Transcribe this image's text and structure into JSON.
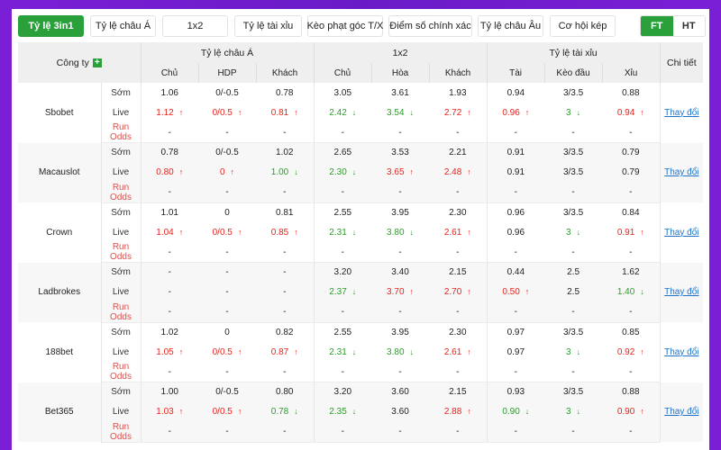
{
  "tabs": [
    {
      "label": "Tỷ lệ 3in1",
      "active": true
    },
    {
      "label": "Tỷ lệ châu Á"
    },
    {
      "label": "1x2"
    },
    {
      "label": "Tỷ lệ tài xỉu"
    },
    {
      "label": "Kèo phạt góc T/X"
    },
    {
      "label": "Điểm số chính xác"
    },
    {
      "label": "Tỷ lệ châu Âu"
    },
    {
      "label": "Cơ hội kép"
    }
  ],
  "toggle": {
    "ft": "FT",
    "ht": "HT"
  },
  "header": {
    "company": "Công ty",
    "asian": "Tỷ lệ châu Á",
    "x12": "1x2",
    "ou": "Tỷ lệ tài xỉu",
    "detail": "Chi tiết",
    "sub": [
      "Chủ",
      "HDP",
      "Khách",
      "Chủ",
      "Hòa",
      "Khách",
      "Tài",
      "Kèo đầu",
      "Xỉu"
    ]
  },
  "labels": {
    "early": "Sớm",
    "live": "Live",
    "run": "Run Odds",
    "detail_link": "Thay đổi",
    "dash": "-"
  },
  "colors": {
    "green": "#29a03a",
    "up": "#e8231e",
    "down": "#2a9d2a",
    "link": "#1e73c8"
  },
  "companies": [
    {
      "name": "Sbobet",
      "early": [
        "1.06",
        "0/-0.5",
        "0.78",
        "3.05",
        "3.61",
        "1.93",
        "0.94",
        "3/3.5",
        "0.88"
      ],
      "live": [
        [
          "1.12",
          "up"
        ],
        [
          "0/0.5",
          "up"
        ],
        [
          "0.81",
          "up"
        ],
        [
          "2.42",
          "down"
        ],
        [
          "3.54",
          "down"
        ],
        [
          "2.72",
          "up"
        ],
        [
          "0.96",
          "up"
        ],
        [
          "3",
          "down"
        ],
        [
          "0.94",
          "up"
        ]
      ]
    },
    {
      "name": "Macauslot",
      "early": [
        "0.78",
        "0/-0.5",
        "1.02",
        "2.65",
        "3.53",
        "2.21",
        "0.91",
        "3/3.5",
        "0.79"
      ],
      "live": [
        [
          "0.80",
          "up"
        ],
        [
          "0",
          "up"
        ],
        [
          "1.00",
          "down"
        ],
        [
          "2.30",
          "down"
        ],
        [
          "3.65",
          "up"
        ],
        [
          "2.48",
          "up"
        ],
        [
          "0.91",
          ""
        ],
        [
          "3/3.5",
          ""
        ],
        [
          "0.79",
          ""
        ]
      ]
    },
    {
      "name": "Crown",
      "early": [
        "1.01",
        "0",
        "0.81",
        "2.55",
        "3.95",
        "2.30",
        "0.96",
        "3/3.5",
        "0.84"
      ],
      "live": [
        [
          "1.04",
          "up"
        ],
        [
          "0/0.5",
          "up"
        ],
        [
          "0.85",
          "up"
        ],
        [
          "2.31",
          "down"
        ],
        [
          "3.80",
          "down"
        ],
        [
          "2.61",
          "up"
        ],
        [
          "0.96",
          ""
        ],
        [
          "3",
          "down"
        ],
        [
          "0.91",
          "up"
        ]
      ]
    },
    {
      "name": "Ladbrokes",
      "early": [
        "-",
        "-",
        "-",
        "3.20",
        "3.40",
        "2.15",
        "0.44",
        "2.5",
        "1.62"
      ],
      "live": [
        [
          "-",
          ""
        ],
        [
          "-",
          ""
        ],
        [
          "-",
          ""
        ],
        [
          "2.37",
          "down"
        ],
        [
          "3.70",
          "up"
        ],
        [
          "2.70",
          "up"
        ],
        [
          "0.50",
          "up"
        ],
        [
          "2.5",
          ""
        ],
        [
          "1.40",
          "down"
        ]
      ]
    },
    {
      "name": "188bet",
      "early": [
        "1.02",
        "0",
        "0.82",
        "2.55",
        "3.95",
        "2.30",
        "0.97",
        "3/3.5",
        "0.85"
      ],
      "live": [
        [
          "1.05",
          "up"
        ],
        [
          "0/0.5",
          "up"
        ],
        [
          "0.87",
          "up"
        ],
        [
          "2.31",
          "down"
        ],
        [
          "3.80",
          "down"
        ],
        [
          "2.61",
          "up"
        ],
        [
          "0.97",
          ""
        ],
        [
          "3",
          "down"
        ],
        [
          "0.92",
          "up"
        ]
      ]
    },
    {
      "name": "Bet365",
      "early": [
        "1.00",
        "0/-0.5",
        "0.80",
        "3.20",
        "3.60",
        "2.15",
        "0.93",
        "3/3.5",
        "0.88"
      ],
      "live": [
        [
          "1.03",
          "up"
        ],
        [
          "0/0.5",
          "up"
        ],
        [
          "0.78",
          "down"
        ],
        [
          "2.35",
          "down"
        ],
        [
          "3.60",
          ""
        ],
        [
          "2.88",
          "up"
        ],
        [
          "0.90",
          "down"
        ],
        [
          "3",
          "down"
        ],
        [
          "0.90",
          "up"
        ]
      ]
    }
  ]
}
